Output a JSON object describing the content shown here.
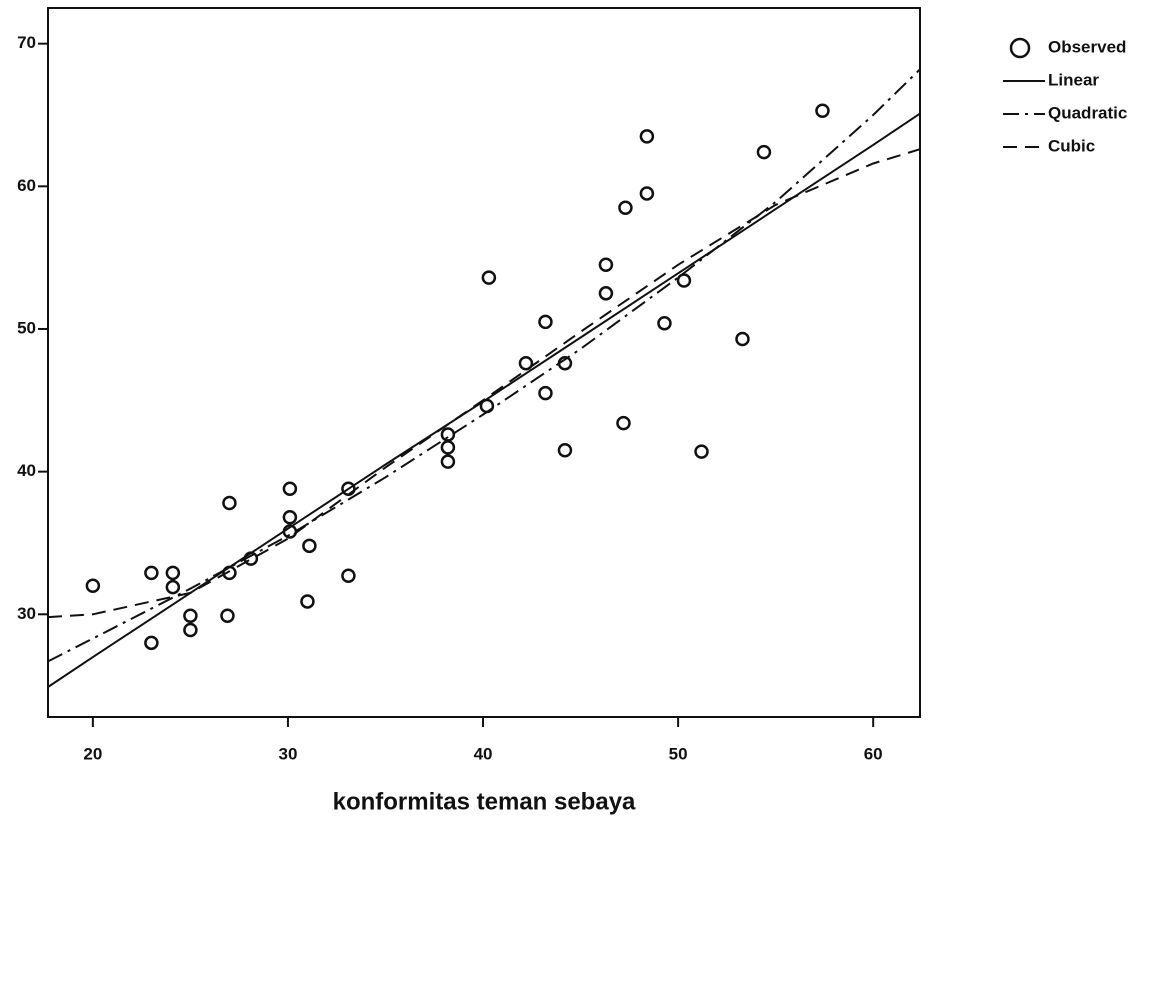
{
  "chart_data": {
    "type": "scatter",
    "x_label": "konformitas teman sebaya",
    "xlim": [
      17.7,
      62.4
    ],
    "ylim": [
      22.8,
      72.5
    ],
    "xticks": [
      20,
      30,
      40,
      50,
      60
    ],
    "yticks": [
      30,
      40,
      50,
      60,
      70
    ],
    "series": [
      {
        "name": "Observed",
        "style": "marker",
        "color": "#111111",
        "x": [
          20,
          23,
          23,
          24.1,
          24.1,
          25,
          25,
          27,
          27,
          26.9,
          28.1,
          30.1,
          30.1,
          30.1,
          31.1,
          31,
          33.1,
          33.1,
          38.2,
          38.2,
          38.2,
          40.2,
          40.3,
          42.2,
          43.2,
          43.2,
          44.2,
          44.2,
          46.3,
          46.3,
          47.2,
          47.3,
          48.4,
          48.4,
          49.3,
          50.3,
          51.2,
          53.3,
          54.4,
          57.4
        ],
        "values": [
          32,
          32.9,
          28,
          32.9,
          31.9,
          29.9,
          28.9,
          37.8,
          32.9,
          29.9,
          33.9,
          38.8,
          36.8,
          35.8,
          34.8,
          30.9,
          38.8,
          32.7,
          42.6,
          41.7,
          40.7,
          44.6,
          53.6,
          47.6,
          50.5,
          45.5,
          47.6,
          41.5,
          52.5,
          54.5,
          43.4,
          58.5,
          59.5,
          63.5,
          50.4,
          53.4,
          41.4,
          49.3,
          62.4,
          65.3
        ]
      },
      {
        "name": "Linear",
        "style": "solid",
        "color": "#111111",
        "x": [
          17.7,
          20,
          25,
          30,
          35,
          40,
          45,
          50,
          55,
          60,
          62.4
        ],
        "values": [
          24.9,
          27,
          31.5,
          36,
          40.5,
          44.9,
          49.4,
          53.9,
          58.4,
          62.9,
          65.1
        ]
      },
      {
        "name": "Quadratic",
        "style": "dashdot",
        "color": "#111111",
        "x": [
          17.7,
          20,
          25,
          30,
          35,
          40,
          45,
          50,
          55,
          60,
          62.4
        ],
        "values": [
          26.7,
          28.3,
          31.8,
          35.5,
          39.6,
          44,
          48.6,
          53.6,
          58.9,
          65,
          68.2
        ]
      },
      {
        "name": "Cubic",
        "style": "dash",
        "color": "#111111",
        "x": [
          17.7,
          20,
          25,
          30,
          35,
          40,
          45,
          50,
          55,
          60,
          62.4
        ],
        "values": [
          29.8,
          30,
          31.5,
          35.3,
          40.3,
          45,
          49.8,
          54.5,
          58.7,
          61.6,
          62.6
        ]
      }
    ]
  }
}
